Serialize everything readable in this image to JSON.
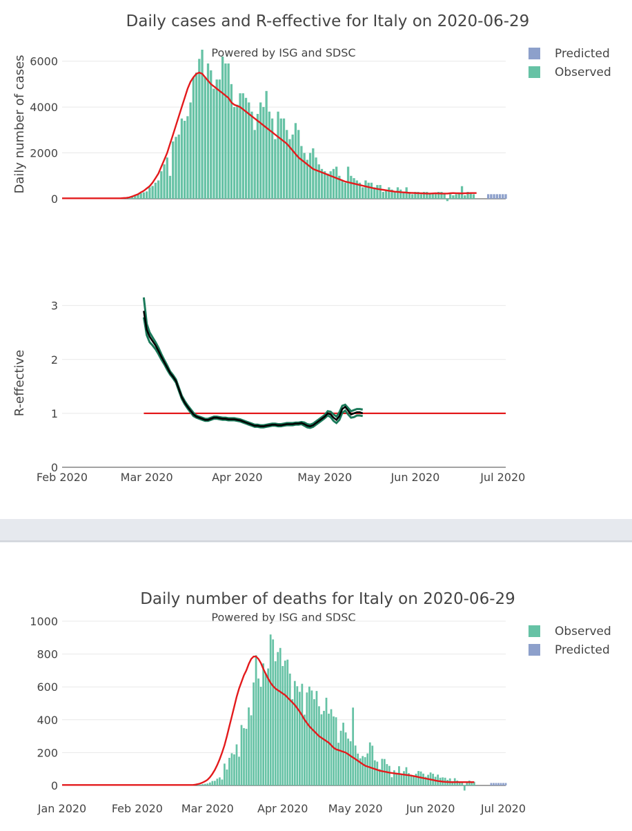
{
  "figures": [
    {
      "title": "Daily cases and R-effective for Italy on 2020-06-29",
      "subtitle": "Powered by ISG and SDSC"
    },
    {
      "title": "Daily number of deaths for Italy on 2020-06-29",
      "subtitle": "Powered by ISG and SDSC"
    }
  ],
  "colors": {
    "observed": "#66c2a5",
    "predicted": "#8da0cb",
    "smoothed": "#e31a1c",
    "r_line": "#000000",
    "r_band": "#1b7a5a",
    "grid": "#e8e8e8",
    "divider": "#e6e9ee"
  },
  "chart_data": [
    {
      "type": "bar",
      "panel": "cases",
      "ylabel": "Daily number of cases",
      "xlim": [
        "2020-02-01",
        "2020-07-02"
      ],
      "ylim": [
        0,
        6500
      ],
      "yticks": [
        0,
        2000,
        4000,
        6000
      ],
      "legend": {
        "placement": "top-right",
        "entries": [
          "Predicted",
          "Observed"
        ]
      },
      "start_date": "2020-02-01",
      "series": [
        {
          "name": "Observed",
          "type": "bar",
          "values": [
            0,
            0,
            0,
            0,
            0,
            0,
            0,
            0,
            0,
            0,
            0,
            0,
            0,
            0,
            0,
            0,
            0,
            0,
            0,
            0,
            0,
            20,
            60,
            80,
            90,
            120,
            200,
            240,
            280,
            320,
            500,
            560,
            700,
            800,
            1200,
            1500,
            1800,
            1000,
            2500,
            2700,
            2800,
            3500,
            3400,
            3600,
            4200,
            5300,
            5500,
            6100,
            6500,
            5300,
            5900,
            5600,
            4800,
            5200,
            5200,
            6200,
            5900,
            5900,
            5000,
            4000,
            4100,
            4600,
            4600,
            4400,
            4200,
            3800,
            3000,
            3700,
            4200,
            4000,
            4700,
            3800,
            3500,
            2600,
            3800,
            3500,
            3500,
            3000,
            2600,
            2800,
            3300,
            3000,
            2300,
            2000,
            1700,
            2000,
            2200,
            1800,
            1500,
            1300,
            1200,
            1100,
            1200,
            1300,
            1400,
            1000,
            800,
            700,
            1400,
            1000,
            900,
            800,
            700,
            500,
            800,
            700,
            700,
            500,
            600,
            600,
            300,
            400,
            500,
            400,
            300,
            500,
            400,
            300,
            500,
            300,
            200,
            300,
            300,
            200,
            300,
            300,
            200,
            250,
            200,
            300,
            300,
            250,
            -100,
            200,
            150,
            200,
            250,
            550,
            150,
            300,
            250,
            200
          ]
        },
        {
          "name": "Predicted",
          "type": "bar",
          "start": "2020-06-26",
          "values": [
            200,
            200,
            200,
            200,
            200,
            200,
            200
          ]
        },
        {
          "name": "Smoothed",
          "type": "line",
          "values": [
            20,
            20,
            20,
            20,
            20,
            20,
            20,
            20,
            20,
            20,
            20,
            20,
            20,
            20,
            20,
            20,
            20,
            20,
            20,
            20,
            20,
            30,
            40,
            60,
            100,
            150,
            200,
            280,
            350,
            450,
            550,
            700,
            900,
            1100,
            1400,
            1700,
            2000,
            2400,
            2800,
            3200,
            3600,
            4000,
            4400,
            4800,
            5100,
            5300,
            5450,
            5500,
            5450,
            5300,
            5150,
            5000,
            4900,
            4800,
            4700,
            4600,
            4500,
            4400,
            4200,
            4100,
            4050,
            4000,
            3900,
            3800,
            3700,
            3600,
            3500,
            3400,
            3300,
            3200,
            3100,
            3000,
            2900,
            2800,
            2700,
            2600,
            2500,
            2400,
            2250,
            2100,
            1950,
            1800,
            1700,
            1600,
            1500,
            1400,
            1300,
            1250,
            1200,
            1150,
            1100,
            1050,
            1000,
            950,
            900,
            850,
            800,
            750,
            720,
            690,
            660,
            630,
            600,
            570,
            540,
            510,
            480,
            450,
            430,
            410,
            390,
            370,
            350,
            330,
            310,
            300,
            290,
            280,
            270,
            260,
            255,
            250,
            245,
            240,
            235,
            230,
            230,
            235,
            240,
            235,
            230,
            230,
            230,
            240,
            250,
            245,
            240,
            235,
            240,
            245,
            250,
            250,
            250
          ]
        }
      ]
    },
    {
      "type": "line",
      "panel": "r-effective",
      "ylabel": "R-effective",
      "xlim": [
        "2020-02-01",
        "2020-07-02"
      ],
      "ylim": [
        0,
        3.2
      ],
      "yticks": [
        0,
        1,
        2,
        3
      ],
      "xticks": [
        "Feb 2020",
        "Mar 2020",
        "Apr 2020",
        "May 2020",
        "Jun 2020",
        "Jul 2020"
      ],
      "reference_line": {
        "y": 1,
        "from": "2020-02-29",
        "to": "2020-07-02"
      },
      "series": [
        {
          "name": "R",
          "start_date": "2020-02-29",
          "values": [
            2.9,
            2.55,
            2.42,
            2.34,
            2.26,
            2.16,
            2.05,
            1.95,
            1.85,
            1.75,
            1.68,
            1.6,
            1.45,
            1.3,
            1.2,
            1.12,
            1.05,
            0.98,
            0.94,
            0.92,
            0.9,
            0.88,
            0.88,
            0.9,
            0.92,
            0.92,
            0.91,
            0.9,
            0.9,
            0.89,
            0.89,
            0.89,
            0.88,
            0.87,
            0.85,
            0.83,
            0.81,
            0.79,
            0.77,
            0.77,
            0.76,
            0.76,
            0.77,
            0.78,
            0.79,
            0.79,
            0.78,
            0.78,
            0.79,
            0.8,
            0.8,
            0.8,
            0.81,
            0.81,
            0.82,
            0.8,
            0.77,
            0.76,
            0.78,
            0.82,
            0.86,
            0.9,
            0.94,
            1.0,
            0.98,
            0.92,
            0.88,
            0.95,
            1.08,
            1.12,
            1.05,
            0.98,
            1.0,
            1.02,
            1.02,
            1.0
          ]
        },
        {
          "name": "R-lower",
          "start_date": "2020-02-29",
          "values": [
            2.78,
            2.45,
            2.32,
            2.26,
            2.19,
            2.1,
            2.0,
            1.91,
            1.81,
            1.72,
            1.65,
            1.57,
            1.42,
            1.27,
            1.17,
            1.09,
            1.02,
            0.95,
            0.92,
            0.9,
            0.88,
            0.86,
            0.86,
            0.88,
            0.9,
            0.9,
            0.89,
            0.88,
            0.88,
            0.87,
            0.87,
            0.87,
            0.86,
            0.85,
            0.83,
            0.81,
            0.79,
            0.77,
            0.75,
            0.75,
            0.74,
            0.74,
            0.75,
            0.76,
            0.77,
            0.77,
            0.76,
            0.76,
            0.77,
            0.78,
            0.78,
            0.78,
            0.79,
            0.79,
            0.8,
            0.77,
            0.74,
            0.73,
            0.75,
            0.79,
            0.83,
            0.87,
            0.91,
            0.96,
            0.93,
            0.86,
            0.82,
            0.88,
            1.01,
            1.05,
            0.98,
            0.92,
            0.93,
            0.96,
            0.96,
            0.95
          ]
        },
        {
          "name": "R-upper",
          "start_date": "2020-02-29",
          "values": [
            3.15,
            2.66,
            2.5,
            2.41,
            2.32,
            2.22,
            2.1,
            1.99,
            1.89,
            1.78,
            1.71,
            1.63,
            1.48,
            1.33,
            1.23,
            1.15,
            1.08,
            1.01,
            0.96,
            0.94,
            0.92,
            0.9,
            0.9,
            0.92,
            0.94,
            0.94,
            0.93,
            0.92,
            0.92,
            0.91,
            0.91,
            0.91,
            0.9,
            0.89,
            0.87,
            0.85,
            0.83,
            0.81,
            0.79,
            0.79,
            0.78,
            0.78,
            0.79,
            0.8,
            0.81,
            0.81,
            0.8,
            0.8,
            0.81,
            0.82,
            0.82,
            0.82,
            0.83,
            0.83,
            0.84,
            0.83,
            0.8,
            0.79,
            0.81,
            0.85,
            0.89,
            0.93,
            0.97,
            1.04,
            1.03,
            0.98,
            0.94,
            1.02,
            1.14,
            1.16,
            1.1,
            1.04,
            1.06,
            1.08,
            1.08,
            1.07
          ]
        }
      ]
    },
    {
      "type": "bar",
      "panel": "deaths",
      "ylabel": "",
      "xlim": [
        "2020-01-01",
        "2020-07-02"
      ],
      "ylim": [
        0,
        1000
      ],
      "yticks": [
        0,
        200,
        400,
        600,
        800,
        1000
      ],
      "xticks": [
        "Jan 2020",
        "Feb 2020",
        "Mar 2020",
        "Apr 2020",
        "May 2020",
        "Jun 2020",
        "Jul 2020"
      ],
      "legend": {
        "placement": "top-right",
        "entries": [
          "Observed",
          "Predicted"
        ]
      },
      "start_date": "2020-02-24",
      "series": [
        {
          "name": "Observed",
          "type": "bar",
          "values": [
            2,
            3,
            4,
            5,
            8,
            10,
            12,
            18,
            27,
            28,
            41,
            49,
            36,
            133,
            97,
            168,
            196,
            189,
            250,
            175,
            368,
            349,
            345,
            475,
            427,
            627,
            793,
            651,
            601,
            743,
            683,
            712,
            919,
            889,
            756,
            812,
            837,
            727,
            760,
            766,
            681,
            525,
            636,
            604,
            570,
            619,
            431,
            566,
            602,
            578,
            525,
            575,
            482,
            433,
            454,
            534,
            437,
            464,
            420,
            415,
            260,
            333,
            382,
            323,
            285,
            269,
            474,
            243,
            194,
            165,
            179,
            172,
            195,
            262,
            242,
            153,
            145,
            99,
            162,
            161,
            130,
            119,
            50,
            92,
            78,
            117,
            70,
            87,
            111,
            75,
            60,
            55,
            71,
            88,
            85,
            72,
            53,
            65,
            79,
            71,
            53,
            66,
            47,
            49,
            47,
            34,
            43,
            26,
            44,
            30,
            24,
            24,
            -31,
            21,
            30,
            23,
            22
          ]
        },
        {
          "name": "Predicted",
          "type": "bar",
          "start": "2020-06-26",
          "values": [
            15,
            15,
            15,
            15,
            15,
            15,
            15
          ]
        },
        {
          "name": "Smoothed",
          "type": "line",
          "values": [
            3,
            5,
            8,
            12,
            18,
            25,
            35,
            50,
            70,
            95,
            125,
            160,
            200,
            245,
            300,
            360,
            420,
            480,
            540,
            590,
            630,
            670,
            700,
            740,
            770,
            785,
            785,
            770,
            745,
            710,
            680,
            650,
            625,
            605,
            590,
            580,
            570,
            560,
            550,
            535,
            520,
            505,
            490,
            470,
            450,
            425,
            400,
            380,
            360,
            345,
            330,
            315,
            300,
            290,
            280,
            270,
            260,
            245,
            230,
            220,
            215,
            210,
            205,
            200,
            190,
            180,
            170,
            160,
            150,
            140,
            130,
            120,
            115,
            110,
            105,
            100,
            95,
            90,
            87,
            84,
            81,
            78,
            76,
            74,
            72,
            70,
            68,
            66,
            64,
            62,
            60,
            57,
            54,
            51,
            48,
            45,
            42,
            39,
            36,
            33,
            30,
            27,
            25,
            23,
            22,
            21,
            20,
            20,
            20,
            20,
            20,
            20,
            20,
            20,
            20,
            20,
            20
          ]
        }
      ]
    }
  ]
}
